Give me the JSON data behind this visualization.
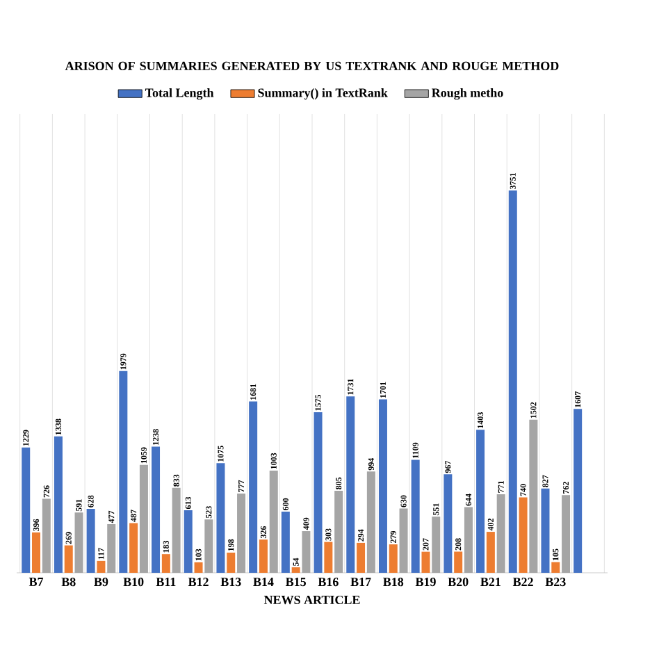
{
  "chart_data": {
    "type": "bar",
    "title": "ARISON OF SUMMARIES GENERATED BY US TEXTRANK AND ROUGE METHOD",
    "xlabel": "NEWS ARTICLE",
    "categories": [
      "B7",
      "B8",
      "B9",
      "B10",
      "B11",
      "B12",
      "B13",
      "B14",
      "B15",
      "B16",
      "B17",
      "B18",
      "B19",
      "B20",
      "B21",
      "B22",
      "B23",
      null
    ],
    "series": [
      {
        "name": "Total Length",
        "color": "#4472c4",
        "values": [
          1229,
          1338,
          628,
          1979,
          1238,
          613,
          1075,
          1681,
          600,
          1575,
          1731,
          1701,
          1109,
          967,
          1403,
          3751,
          827,
          1607
        ]
      },
      {
        "name": "Summary() in TextRank",
        "color": "#ed7d31",
        "values": [
          396,
          269,
          117,
          487,
          183,
          103,
          198,
          326,
          54,
          303,
          294,
          279,
          207,
          208,
          402,
          740,
          105,
          null
        ]
      },
      {
        "name": "Rough metho",
        "color": "#a5a5a5",
        "values": [
          726,
          591,
          477,
          1059,
          833,
          523,
          777,
          1003,
          409,
          805,
          994,
          630,
          551,
          644,
          771,
          1502,
          762,
          null
        ]
      }
    ],
    "data_labels": true,
    "grid": "x",
    "legend": "top"
  }
}
